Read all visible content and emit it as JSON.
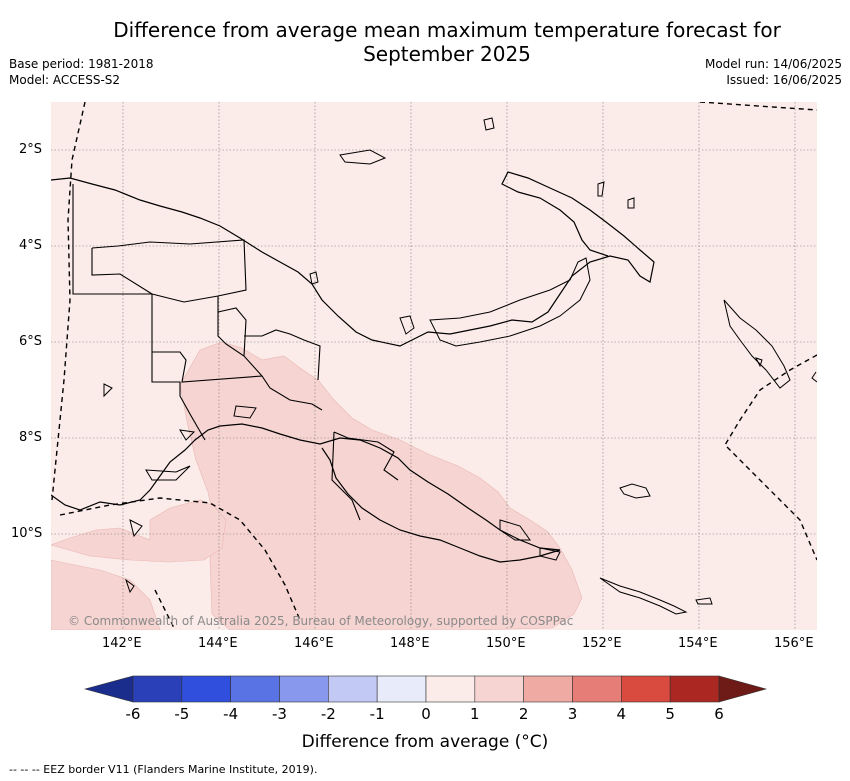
{
  "title": "Difference from average mean maximum temperature forecast for September 2025",
  "title_line1": "Difference from average mean maximum temperature forecast for",
  "title_line2": "September 2025",
  "meta_left": [
    "Base period: 1981-2018",
    "Model: ACCESS-S2"
  ],
  "meta_right": [
    "Model run: 14/06/2025",
    "Issued: 16/06/2025"
  ],
  "lat_labels": [
    "2°S",
    "4°S",
    "6°S",
    "8°S",
    "10°S"
  ],
  "lon_labels": [
    "142°E",
    "144°E",
    "146°E",
    "148°E",
    "150°E",
    "152°E",
    "154°E",
    "156°E"
  ],
  "copyright": "© Commonwealth of Australia 2025, Bureau of Meteorology, supported by COSPPac",
  "colorbar": {
    "label": "Difference from average (°C)",
    "ticks": [
      "-6",
      "-5",
      "-4",
      "-3",
      "-2",
      "-1",
      "0",
      "1",
      "2",
      "3",
      "4",
      "5",
      "6"
    ],
    "colors": [
      "#1a2c8c",
      "#2a40b8",
      "#2f4fdc",
      "#5a73e4",
      "#8898ec",
      "#c2c9f4",
      "#e8ebfa",
      "#fbebe9",
      "#f6d4d1",
      "#efaaa4",
      "#e67e77",
      "#d94a3f",
      "#ab2822",
      "#6e1a16"
    ]
  },
  "footnote": "-- -- -- EEZ border V11 (Flanders Marine Institute, 2019).",
  "colors": {
    "background_anomaly": "#fbebe9",
    "warm_anomaly": "#f6d4d1"
  }
}
